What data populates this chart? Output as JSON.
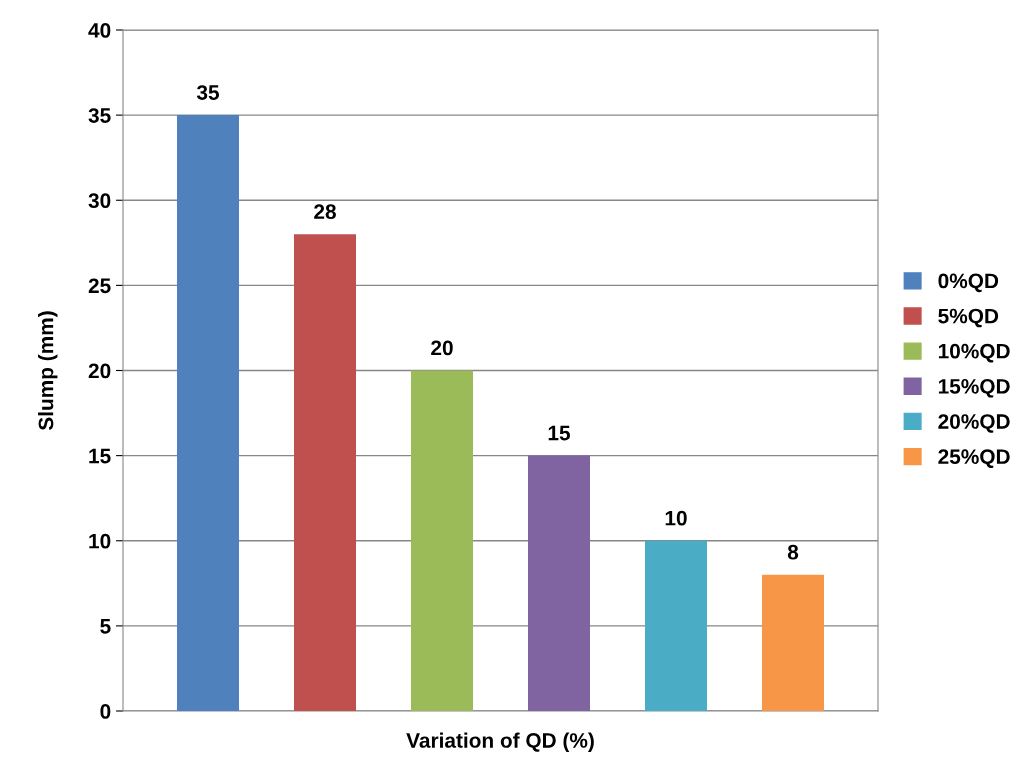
{
  "chart_data": {
    "type": "bar",
    "xlabel": "Variation of QD (%)",
    "ylabel": "Slump (mm)",
    "categories": [
      null
    ],
    "series": [
      {
        "name": "0%QD",
        "color": "#4f81bd",
        "values": [
          35
        ]
      },
      {
        "name": "5%QD",
        "color": "#c0504d",
        "values": [
          28
        ]
      },
      {
        "name": "10%QD",
        "color": "#9bbb59",
        "values": [
          20
        ]
      },
      {
        "name": "15%QD",
        "color": "#8064a2",
        "values": [
          15
        ]
      },
      {
        "name": "20%QD",
        "color": "#4bacc6",
        "values": [
          10
        ]
      },
      {
        "name": "25%QD",
        "color": "#f79646",
        "values": [
          8
        ]
      }
    ],
    "ylim": [
      0,
      40
    ],
    "yticks": [
      0,
      5,
      10,
      15,
      20,
      25,
      30,
      35,
      40
    ],
    "grid": "y",
    "legend": "right",
    "data_labels": true
  }
}
